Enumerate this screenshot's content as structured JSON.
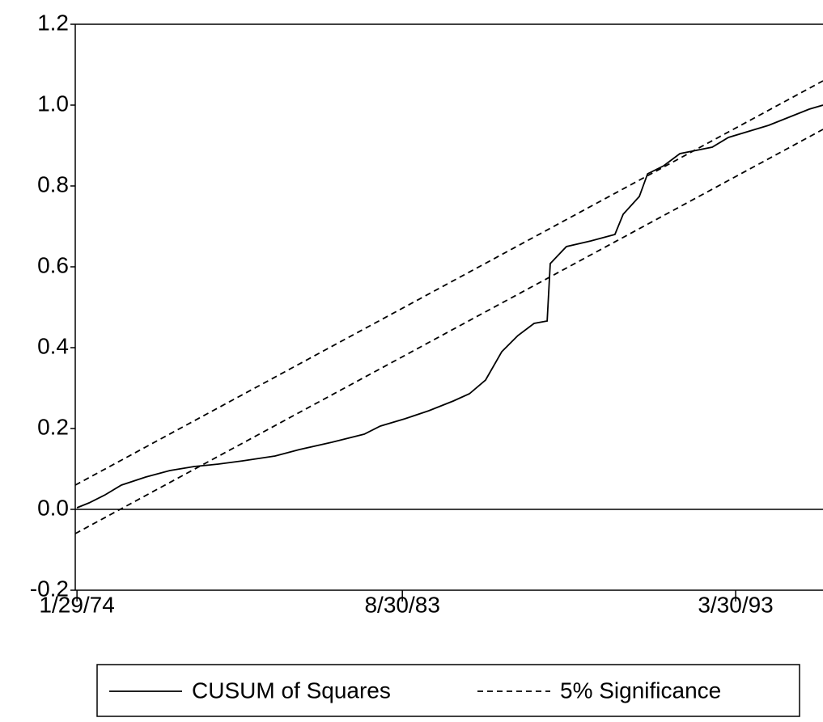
{
  "chart_data": {
    "type": "line",
    "xlim": [
      1974.04,
      1995.78
    ],
    "xticks": [
      {
        "value": 1974.09,
        "label": "1/29/74"
      },
      {
        "value": 1983.55,
        "label": "8/30/83"
      },
      {
        "value": 1993.24,
        "label": "3/30/93"
      }
    ],
    "ylim": [
      -0.2,
      1.2
    ],
    "yticks": [
      -0.2,
      {
        "value": 0,
        "label": "0.0"
      },
      0.2,
      0.4,
      0.6,
      0.8,
      {
        "value": 1,
        "label": "1.0"
      },
      1.2
    ],
    "hline": 0,
    "series": [
      {
        "name": "CUSUM of Squares",
        "color": "#000000",
        "x": [
          1974.09,
          1974.44,
          1974.91,
          1975.38,
          1976.09,
          1976.79,
          1977.5,
          1978.2,
          1978.91,
          1979.85,
          1980.56,
          1981.5,
          1982.44,
          1982.91,
          1983.62,
          1984.32,
          1985.03,
          1985.5,
          1985.97,
          1986.44,
          1986.91,
          1987.38,
          1987.76,
          1987.85,
          1988.32,
          1989.03,
          1989.73,
          1989.97,
          1990.44,
          1990.68,
          1991.15,
          1991.62,
          1992.56,
          1993.03,
          1994.2,
          1995.38,
          1995.78
        ],
        "values": [
          0.004,
          0.016,
          0.036,
          0.06,
          0.08,
          0.096,
          0.106,
          0.112,
          0.12,
          0.132,
          0.148,
          0.166,
          0.186,
          0.206,
          0.224,
          0.244,
          0.268,
          0.286,
          0.32,
          0.39,
          0.43,
          0.46,
          0.466,
          0.608,
          0.65,
          0.664,
          0.68,
          0.73,
          0.774,
          0.83,
          0.85,
          0.88,
          0.896,
          0.92,
          0.95,
          0.99,
          1.0
        ]
      },
      {
        "name": "5% Significance",
        "color": "#000000",
        "dashed": true,
        "x": [
          1974.04,
          1995.78
        ],
        "upper": [
          0.06,
          1.06
        ],
        "lower": [
          -0.06,
          0.94
        ]
      }
    ]
  }
}
